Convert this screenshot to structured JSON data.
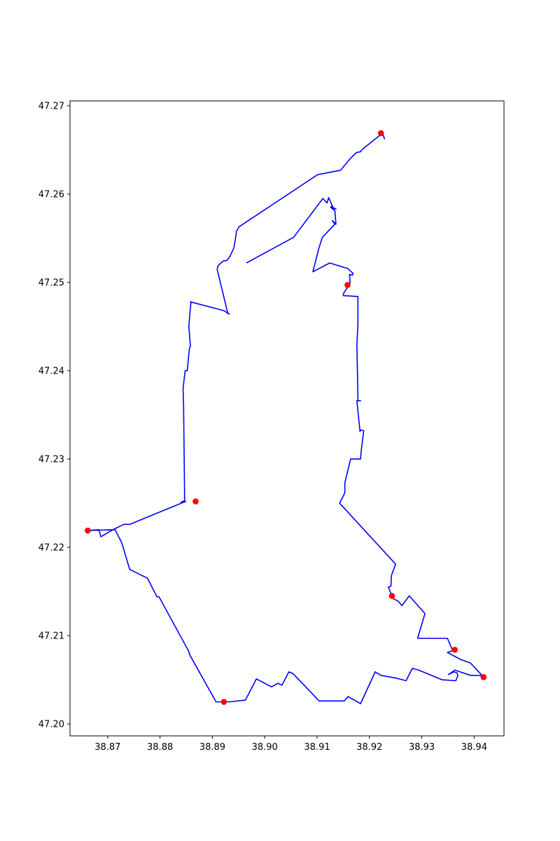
{
  "chart_data": {
    "type": "line",
    "title": "",
    "xlabel": "",
    "ylabel": "",
    "xlim": [
      38.8628,
      38.9457
    ],
    "ylim": [
      47.19865,
      47.27055
    ],
    "grid": false,
    "legend": "none",
    "x_ticks": [
      "38.87",
      "38.88",
      "38.89",
      "38.90",
      "38.91",
      "38.92",
      "38.93",
      "38.94"
    ],
    "y_ticks": [
      "47.20",
      "47.21",
      "47.22",
      "47.23",
      "47.24",
      "47.25",
      "47.26",
      "47.27"
    ],
    "series": [
      {
        "kind": "line",
        "color": "#0000ff",
        "x": [
          38.9229,
          38.9225,
          38.9185,
          38.9183,
          38.9175,
          38.9168,
          38.9163,
          38.9145,
          38.9101,
          38.8951,
          38.8946,
          38.8945,
          38.8941,
          38.8934,
          38.8928,
          38.892,
          38.8911,
          38.8909,
          38.8929,
          38.8932,
          38.8922,
          38.8858,
          38.8859,
          38.8857,
          38.8855,
          38.8858,
          38.8858,
          38.8856,
          38.8852,
          38.885,
          38.8848,
          38.8844,
          38.8845,
          38.8847,
          38.884,
          38.8849,
          38.8742,
          38.8731,
          38.871,
          38.8687,
          38.8683,
          38.8662,
          38.8714,
          38.8727,
          38.8742,
          38.8776,
          38.8789,
          38.8794,
          38.8798,
          38.8855,
          38.8856,
          38.8907,
          38.8932,
          38.8963,
          38.8984,
          38.9013,
          38.9025,
          38.9033,
          38.9046,
          38.9054,
          38.9104,
          38.9152,
          38.9159,
          38.9183,
          38.9211,
          38.9222,
          38.925,
          38.927,
          38.9282,
          38.9294,
          38.9339,
          38.9365,
          38.9369,
          38.9367,
          38.9361,
          38.9351,
          38.9363,
          38.9393,
          38.9415,
          38.9393,
          38.9374,
          38.9349,
          38.9359,
          38.9349,
          38.9292,
          38.9306,
          38.9276,
          38.9262,
          38.9255,
          38.9245,
          38.9236,
          38.9241,
          38.9242,
          38.925,
          38.9143,
          38.915,
          38.9153,
          38.9153,
          38.9164,
          38.9183,
          38.9184,
          38.9189,
          38.9183,
          38.9182,
          38.9176,
          38.9183,
          38.9183,
          38.9181,
          38.9178,
          38.9177,
          38.9176,
          38.9178,
          38.9178,
          38.9178,
          38.915,
          38.915,
          38.9163,
          38.9162,
          38.9163,
          38.9167,
          38.9169,
          38.9158,
          38.9157,
          38.9124,
          38.9092,
          38.9103,
          38.911,
          38.9134,
          38.9129,
          38.9136,
          38.9134,
          38.9126,
          38.9127,
          38.9136,
          38.9131,
          38.9122,
          38.9119,
          38.9111,
          38.9055,
          38.8965
        ],
        "y": [
          47.2662,
          47.2669,
          47.265,
          47.2648,
          47.2647,
          47.2643,
          47.264,
          47.2627,
          47.2622,
          47.2563,
          47.2558,
          47.2553,
          47.2539,
          47.253,
          47.2525,
          47.2524,
          47.2519,
          47.2515,
          47.2466,
          47.2464,
          47.2468,
          47.2478,
          47.2477,
          47.2465,
          47.245,
          47.2428,
          47.2428,
          47.2425,
          47.24,
          47.24,
          47.24,
          47.238,
          47.236,
          47.2253,
          47.2251,
          47.2252,
          47.2226,
          47.2226,
          47.222,
          47.2212,
          47.222,
          47.2219,
          47.222,
          47.2205,
          47.2175,
          47.2165,
          47.215,
          47.2144,
          47.2144,
          47.2082,
          47.2079,
          47.2025,
          47.2025,
          47.2027,
          47.2051,
          47.2042,
          47.2046,
          47.2044,
          47.2059,
          47.2057,
          47.2026,
          47.2026,
          47.2031,
          47.2023,
          47.2059,
          47.2055,
          47.2052,
          47.2049,
          47.2063,
          47.2061,
          47.205,
          47.2049,
          47.2055,
          47.2058,
          47.2059,
          47.2056,
          47.2061,
          47.2055,
          47.2055,
          47.2069,
          47.2073,
          47.2081,
          47.2083,
          47.2097,
          47.2097,
          47.2125,
          47.2145,
          47.2134,
          47.2139,
          47.2142,
          47.2155,
          47.2156,
          47.2168,
          47.2181,
          47.225,
          47.2258,
          47.2262,
          47.2273,
          47.23,
          47.23,
          47.2308,
          47.2332,
          47.2333,
          47.2331,
          47.2366,
          47.2366,
          47.2366,
          47.2366,
          47.2366,
          47.2401,
          47.243,
          47.2452,
          47.2468,
          47.2484,
          47.2485,
          47.2487,
          47.2499,
          47.2509,
          47.2509,
          47.2508,
          47.251,
          47.2516,
          47.2516,
          47.2522,
          47.2512,
          47.2538,
          47.2551,
          47.2566,
          47.257,
          47.2566,
          47.2581,
          47.2585,
          47.2586,
          47.2583,
          47.2584,
          47.2596,
          47.259,
          47.2595,
          47.2551,
          47.2522
        ]
      },
      {
        "kind": "scatter",
        "color": "#ff0000",
        "x": [
          38.9222,
          38.9158,
          38.8868,
          38.8662,
          38.9243,
          38.9363,
          38.9418,
          38.8922
        ],
        "y": [
          47.2669,
          47.2497,
          47.2252,
          47.2219,
          47.2145,
          47.2084,
          47.2053,
          47.2025
        ]
      }
    ]
  }
}
